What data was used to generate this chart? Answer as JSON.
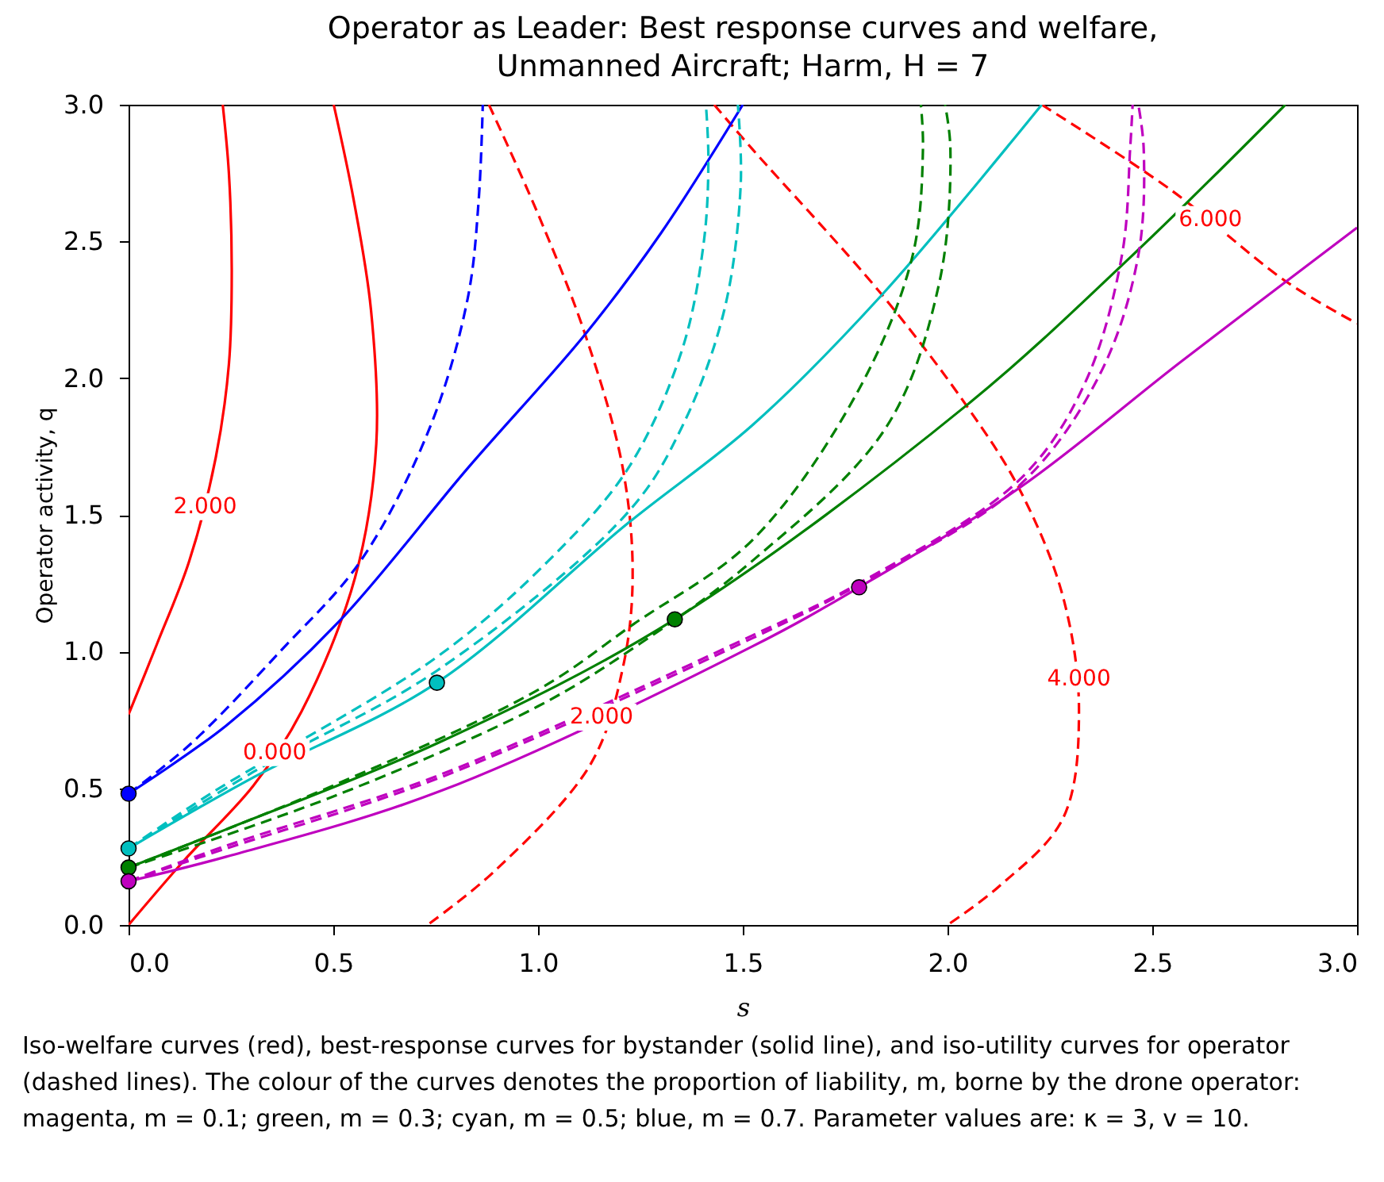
{
  "chart_data": {
    "type": "line",
    "title": "Operator as Leader: Best response curves and welfare,\nUnmanned Aircraft; Harm, H = 7",
    "xlabel": "s",
    "ylabel": "Operator activity, q",
    "xlim": [
      0,
      3
    ],
    "ylim": [
      0,
      3
    ],
    "xticks": [
      {
        "value": 0,
        "label": "0.0"
      },
      {
        "value": 0.5,
        "label": "0.5"
      },
      {
        "value": 1,
        "label": "1.0"
      },
      {
        "value": 1.5,
        "label": "1.5"
      },
      {
        "value": 2,
        "label": "2.0"
      },
      {
        "value": 2.5,
        "label": "2.5"
      },
      {
        "value": 3,
        "label": "3.0"
      }
    ],
    "yticks": [
      {
        "value": 0,
        "label": "0.0"
      },
      {
        "value": 0.5,
        "label": "0.5"
      },
      {
        "value": 1,
        "label": "1.0"
      },
      {
        "value": 1.5,
        "label": "1.5"
      },
      {
        "value": 2,
        "label": "2.0"
      },
      {
        "value": 2.5,
        "label": "2.5"
      },
      {
        "value": 3,
        "label": "3.0"
      }
    ],
    "grid": false,
    "series": [
      {
        "color": "#ff0000",
        "line_style": "solid",
        "x": [
          0,
          0.07,
          0.148,
          0.213,
          0.245,
          0.252,
          0.245,
          0.23
        ],
        "values": [
          0.77,
          1.03,
          1.33,
          1.71,
          2.05,
          2.39,
          2.75,
          3.0
        ]
      },
      {
        "color": "#ff0000",
        "line_style": "solid",
        "x": [
          0,
          0.135,
          0.305,
          0.422,
          0.553,
          0.605,
          0.592,
          0.55,
          0.501
        ],
        "values": [
          0,
          0.235,
          0.51,
          0.78,
          1.27,
          1.76,
          2.25,
          2.65,
          3.0
        ]
      },
      {
        "color": "#ff0000",
        "line_style": "dashed",
        "x": [
          0.88,
          1.0,
          1.115,
          1.207,
          1.231,
          1.207,
          1.129,
          0.893,
          0.73
        ],
        "values": [
          3.0,
          2.6,
          2.16,
          1.67,
          1.27,
          0.94,
          0.59,
          0.196,
          0
        ]
      },
      {
        "color": "#ff0000",
        "line_style": "dashed",
        "x": [
          1.43,
          1.522,
          1.837,
          2.046,
          2.177,
          2.282,
          2.321,
          2.282,
          2.125,
          2.0
        ],
        "values": [
          3.0,
          2.84,
          2.31,
          1.9,
          1.59,
          1.2,
          0.78,
          0.39,
          0.14,
          0
        ]
      },
      {
        "color": "#ff0000",
        "line_style": "dashed",
        "x": [
          2.23,
          2.544,
          2.83,
          3.0
        ],
        "values": [
          3.0,
          2.69,
          2.35,
          2.2
        ]
      },
      {
        "color": "#0000ff",
        "line_style": "solid",
        "x": [
          0,
          0.239,
          0.514,
          0.828,
          1.115,
          1.3,
          1.5
        ],
        "values": [
          0.48,
          0.73,
          1.11,
          1.67,
          2.16,
          2.53,
          3.0
        ]
      },
      {
        "color": "#0000ff",
        "line_style": "dashed",
        "x": [
          0,
          0.15,
          0.37,
          0.566,
          0.736,
          0.828,
          0.855,
          0.865
        ],
        "values": [
          0.48,
          0.66,
          1.0,
          1.33,
          1.82,
          2.29,
          2.65,
          3.0
        ]
      },
      {
        "color": "#00bfbf",
        "line_style": "solid",
        "x": [
          0,
          0.305,
          0.753,
          1.22,
          1.525,
          1.837,
          2.23
        ],
        "values": [
          0.28,
          0.54,
          0.886,
          1.47,
          1.83,
          2.3,
          3.0
        ]
      },
      {
        "color": "#00bfbf",
        "line_style": "dashed",
        "x": [
          0,
          0.2,
          0.753,
          1.024,
          1.22,
          1.351,
          1.405,
          1.416,
          1.41
        ],
        "values": [
          0.28,
          0.48,
          0.98,
          1.33,
          1.67,
          2.1,
          2.5,
          2.8,
          3.0
        ]
      },
      {
        "color": "#00bfbf",
        "line_style": "dashed",
        "x": [
          0,
          0.305,
          0.753,
          1.22,
          1.351,
          1.455,
          1.495,
          1.488
        ],
        "values": [
          0.28,
          0.56,
          0.93,
          1.51,
          1.82,
          2.25,
          2.71,
          3.0
        ]
      },
      {
        "color": "#008000",
        "line_style": "solid",
        "x": [
          0,
          0.239,
          0.762,
          1.334,
          2.046,
          2.452,
          2.825
        ],
        "values": [
          0.21,
          0.35,
          0.67,
          1.118,
          1.9,
          2.45,
          3.0
        ]
      },
      {
        "color": "#008000",
        "line_style": "dashed",
        "x": [
          0,
          0.5,
          1.0,
          1.233,
          1.525,
          1.784,
          1.915,
          1.94,
          1.935
        ],
        "values": [
          0.21,
          0.51,
          0.86,
          1.1,
          1.41,
          1.96,
          2.45,
          2.84,
          3.0
        ]
      },
      {
        "color": "#008000",
        "line_style": "dashed",
        "x": [
          0,
          0.5,
          1.0,
          1.25,
          1.522,
          1.85,
          1.98,
          2.007,
          1.994
        ],
        "values": [
          0.21,
          0.47,
          0.8,
          1.03,
          1.33,
          1.82,
          2.35,
          2.84,
          3.0
        ]
      },
      {
        "color": "#bf00bf",
        "line_style": "solid",
        "x": [
          0,
          0.239,
          0.762,
          1.525,
          1.784,
          2.177,
          2.57,
          3.0
        ],
        "values": [
          0.16,
          0.25,
          0.49,
          1.02,
          1.235,
          1.6,
          2.06,
          2.55
        ]
      },
      {
        "color": "#bf00bf",
        "line_style": "dashed",
        "x": [
          0,
          0.239,
          0.762,
          1.525,
          1.784,
          2.177,
          2.335,
          2.426,
          2.446,
          2.452
        ],
        "values": [
          0.16,
          0.29,
          0.55,
          1.06,
          1.25,
          1.63,
          1.98,
          2.45,
          2.84,
          3.0
        ]
      },
      {
        "color": "#bf00bf",
        "line_style": "dashed",
        "x": [
          0,
          0.239,
          0.762,
          1.525,
          1.784,
          2.177,
          2.374,
          2.466,
          2.479,
          2.466
        ],
        "values": [
          0.16,
          0.28,
          0.54,
          1.05,
          1.245,
          1.61,
          2.02,
          2.45,
          2.84,
          3.0
        ]
      },
      {
        "type": "scatter",
        "marker": "circle",
        "color": "#0000ff",
        "x": [
          0
        ],
        "values": [
          0.48
        ]
      },
      {
        "type": "scatter",
        "marker": "circle",
        "color": "#00bfbf",
        "x": [
          0,
          0.753
        ],
        "values": [
          0.28,
          0.886
        ]
      },
      {
        "type": "scatter",
        "marker": "circle",
        "color": "#008000",
        "x": [
          0,
          1.334
        ],
        "values": [
          0.21,
          1.118
        ]
      },
      {
        "type": "scatter",
        "marker": "circle",
        "color": "#bf00bf",
        "x": [
          0,
          1.784
        ],
        "values": [
          0.16,
          1.235
        ]
      }
    ],
    "annotations": [
      {
        "text": "2.000",
        "x": 0.187,
        "y": 1.53
      },
      {
        "text": "0.000",
        "x": 0.357,
        "y": 0.63
      },
      {
        "text": "2.000",
        "x": 1.155,
        "y": 0.76
      },
      {
        "text": "4.000",
        "x": 2.321,
        "y": 0.9
      },
      {
        "text": "6.000",
        "x": 2.642,
        "y": 2.58
      },
      "Iso-welfare curves (red), best-response curves for bystander (solid line), and iso-utility curves for operator (dashed lines). The colour of the curves denotes the proportion of liability, m, borne by the drone operator: magenta, m = 0.1; green, m = 0.3; cyan, m = 0.5; blue, m = 0.7. Parameter values are: κ = 3, v = 10."
    ]
  }
}
